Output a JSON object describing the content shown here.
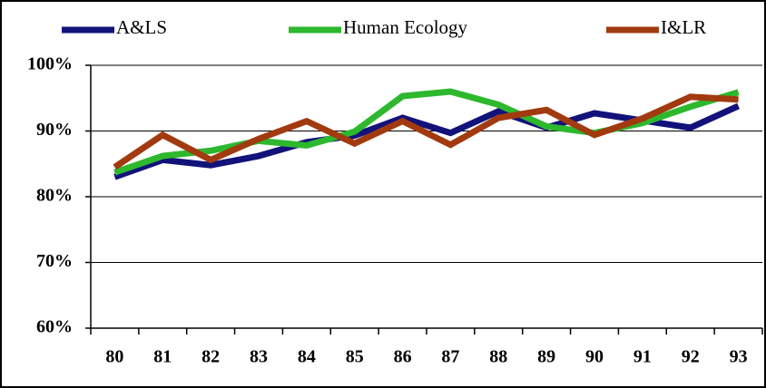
{
  "chart_data": {
    "type": "line",
    "categories": [
      "80",
      "81",
      "82",
      "83",
      "84",
      "85",
      "86",
      "87",
      "88",
      "89",
      "90",
      "91",
      "92",
      "93"
    ],
    "series": [
      {
        "name": "A&LS",
        "color": "#12127a",
        "values": [
          83,
          85.6,
          84.8,
          86.2,
          88.3,
          89.3,
          92,
          89.7,
          93,
          90.5,
          92.7,
          91.6,
          90.5,
          93.8
        ]
      },
      {
        "name": "Human Ecology",
        "color": "#2db82d",
        "values": [
          83.7,
          86.2,
          87,
          88.5,
          87.8,
          89.9,
          95.3,
          96,
          94,
          90.7,
          89.7,
          91.2,
          93.7,
          95.9
        ]
      },
      {
        "name": "I&LR",
        "color": "#a23a10",
        "values": [
          84.5,
          89.4,
          85.6,
          88.8,
          91.5,
          88.1,
          91.5,
          87.9,
          92,
          93.2,
          89.4,
          91.9,
          95.2,
          94.8
        ]
      }
    ],
    "ylim": [
      60,
      100
    ],
    "yticks": [
      {
        "value": 60,
        "label": "60%"
      },
      {
        "value": 70,
        "label": "70%"
      },
      {
        "value": 80,
        "label": "80%"
      },
      {
        "value": 90,
        "label": "90%"
      },
      {
        "value": 100,
        "label": "100%"
      }
    ],
    "grid": true
  }
}
